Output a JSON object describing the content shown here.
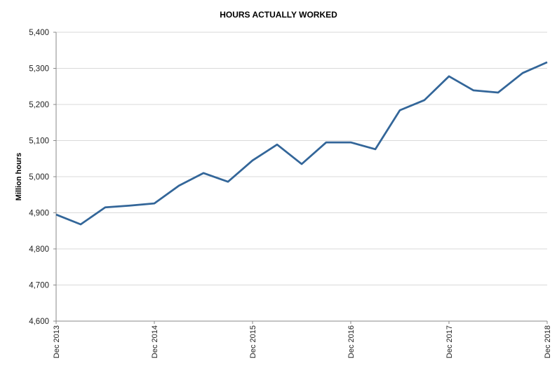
{
  "chart_data": {
    "type": "line",
    "title": "HOURS ACTUALLY WORKED",
    "xlabel": "",
    "ylabel": "Million hours",
    "ylim": [
      4600,
      5400
    ],
    "yticks": [
      "4,600",
      "4,700",
      "4,800",
      "4,900",
      "5,000",
      "5,100",
      "5,200",
      "5,300",
      "5,400"
    ],
    "xtick_labels": [
      "Dec 2013",
      "Dec 2014",
      "Dec 2015",
      "Dec 2016",
      "Dec 2017",
      "Dec 2018"
    ],
    "grid": "horizontal",
    "x": [
      "Dec 2013",
      "Mar 2014",
      "Jun 2014",
      "Sep 2014",
      "Dec 2014",
      "Mar 2015",
      "Jun 2015",
      "Sep 2015",
      "Dec 2015",
      "Mar 2016",
      "Jun 2016",
      "Sep 2016",
      "Dec 2016",
      "Mar 2017",
      "Jun 2017",
      "Sep 2017",
      "Dec 2017",
      "Mar 2018",
      "Jun 2018",
      "Sep 2018",
      "Dec 2018"
    ],
    "series": [
      {
        "values": [
          4895,
          4868,
          4915,
          4920,
          4926,
          4975,
          5010,
          4986,
          5045,
          5089,
          5035,
          5095,
          5095,
          5076,
          5184,
          5212,
          5278,
          5239,
          5233,
          5287,
          5317
        ],
        "color": "#336699"
      }
    ]
  }
}
